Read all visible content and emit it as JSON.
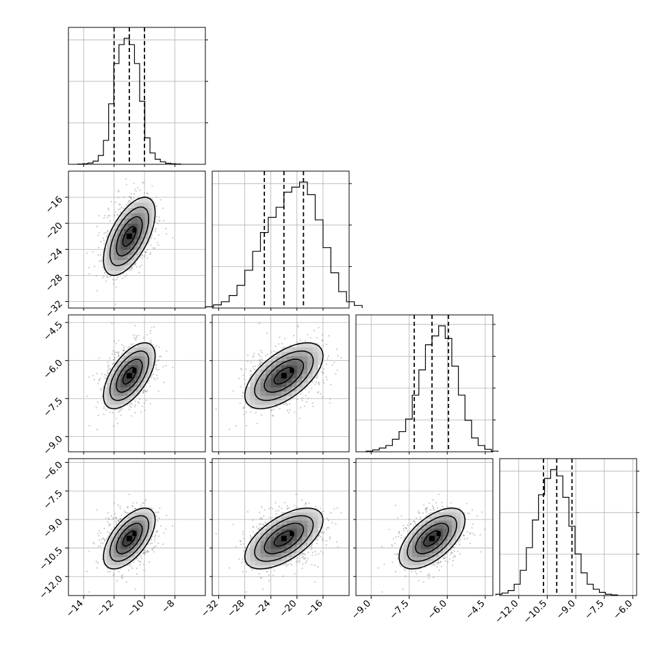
{
  "chart_data": {
    "type": "corner",
    "description_labels": [],
    "grid": true,
    "parameters": [
      {
        "key": "p0",
        "range": [
          -15,
          -6
        ],
        "ticks": [
          -14,
          -12,
          -10,
          -8
        ],
        "tick_labels": [
          "−14",
          "−12",
          "−10",
          "−8"
        ],
        "mean": -11.0,
        "std": 0.85,
        "quantiles": [
          -12.0,
          -11.0,
          -10.0
        ],
        "hist": [
          0.002,
          0.004,
          0.01,
          0.025,
          0.07,
          0.19,
          0.48,
          0.8,
          0.95,
          1.0,
          0.95,
          0.8,
          0.5,
          0.21,
          0.09,
          0.04,
          0.02,
          0.008,
          0.004,
          0.002
        ],
        "hist_yticks": 3
      },
      {
        "key": "p1",
        "range": [
          -33,
          -12
        ],
        "ticks": [
          -32,
          -28,
          -24,
          -20,
          -16
        ],
        "tick_labels": [
          "−32",
          "−28",
          "−24",
          "−20",
          "−16"
        ],
        "mean": -22.0,
        "std": 3.0,
        "quantiles": [
          -25.0,
          -22.0,
          -19.0
        ],
        "hist": [
          0.01,
          0.025,
          0.05,
          0.1,
          0.18,
          0.3,
          0.45,
          0.6,
          0.72,
          0.8,
          0.92,
          0.96,
          1.0,
          0.9,
          0.7,
          0.48,
          0.28,
          0.13,
          0.05,
          0.02
        ],
        "hist_yticks": 3
      },
      {
        "key": "p2",
        "range": [
          -9.6,
          -4.2
        ],
        "ticks": [
          -9.0,
          -7.5,
          -6.0,
          -4.5
        ],
        "tick_labels": [
          "−9.0",
          "−7.5",
          "−6.0",
          "−4.5"
        ],
        "mean": -6.6,
        "std": 0.65,
        "quantiles": [
          -7.3,
          -6.6,
          -5.95
        ],
        "hist": [
          0.005,
          0.015,
          0.03,
          0.05,
          0.1,
          0.16,
          0.26,
          0.45,
          0.65,
          0.85,
          0.92,
          1.0,
          0.9,
          0.68,
          0.45,
          0.25,
          0.11,
          0.05,
          0.02,
          0.005
        ],
        "hist_yticks": 4
      },
      {
        "key": "p3",
        "range": [
          -13,
          -5.8
        ],
        "ticks": [
          -12.0,
          -10.5,
          -9.0,
          -7.5,
          -6.0
        ],
        "tick_labels": [
          "−12.0",
          "−10.5",
          "−9.0",
          "−7.5",
          "−6.0"
        ],
        "mean": -10.0,
        "std": 0.8,
        "quantiles": [
          -10.7,
          -10.0,
          -9.2
        ],
        "hist": [
          0.01,
          0.02,
          0.04,
          0.09,
          0.2,
          0.38,
          0.6,
          0.8,
          0.93,
          1.0,
          0.95,
          0.78,
          0.55,
          0.33,
          0.18,
          0.09,
          0.05,
          0.025,
          0.01,
          0.005
        ],
        "hist_yticks": 3
      }
    ],
    "correlation": 0.6
  }
}
